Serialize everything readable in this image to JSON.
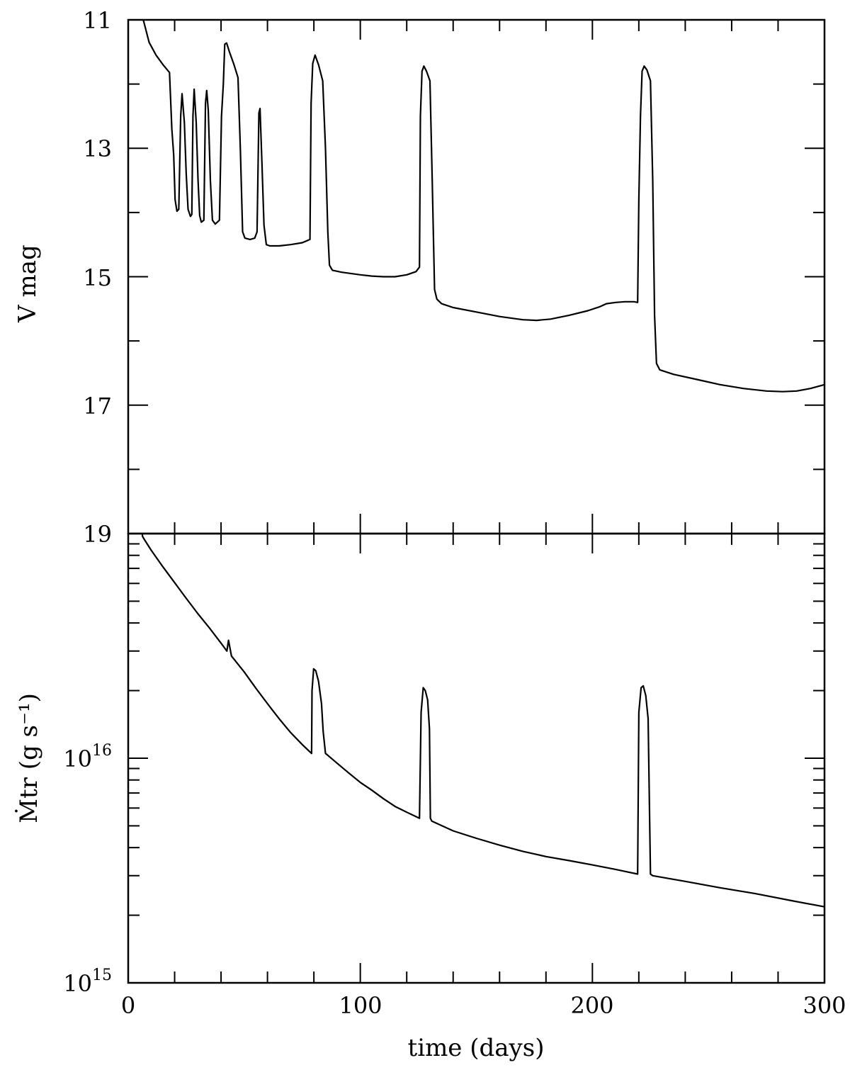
{
  "chart_data": [
    {
      "type": "line",
      "panel": "top",
      "ylabel": "V mag",
      "y_inverted": true,
      "ylim": [
        11,
        19
      ],
      "xlim": [
        0,
        300
      ],
      "y_ticks": [
        "11",
        "13",
        "15",
        "17",
        "19"
      ],
      "series": [
        {
          "points": [
            [
              6.5,
              11.0
            ],
            [
              9,
              11.35
            ],
            [
              12,
              11.55
            ],
            [
              15,
              11.7
            ],
            [
              17.8,
              11.82
            ],
            [
              18.8,
              12.7
            ],
            [
              19.6,
              13.1
            ],
            [
              20.2,
              13.8
            ],
            [
              21,
              13.98
            ],
            [
              21.8,
              13.95
            ],
            [
              22.6,
              12.5
            ],
            [
              23.2,
              12.15
            ],
            [
              24.2,
              12.6
            ],
            [
              25,
              13.4
            ],
            [
              25.8,
              13.95
            ],
            [
              26.8,
              14.06
            ],
            [
              27.4,
              14.03
            ],
            [
              27.9,
              12.5
            ],
            [
              28.4,
              12.08
            ],
            [
              29.3,
              12.6
            ],
            [
              30.1,
              13.5
            ],
            [
              30.8,
              14.05
            ],
            [
              31.5,
              14.15
            ],
            [
              32.6,
              14.12
            ],
            [
              33.3,
              12.3
            ],
            [
              33.8,
              12.1
            ],
            [
              34.5,
              12.4
            ],
            [
              35.4,
              13.5
            ],
            [
              36.3,
              14.12
            ],
            [
              37.5,
              14.18
            ],
            [
              39.3,
              14.12
            ],
            [
              40.2,
              12.5
            ],
            [
              41,
              12.0
            ],
            [
              41.6,
              11.38
            ],
            [
              42.4,
              11.36
            ],
            [
              43.6,
              11.5
            ],
            [
              45.6,
              11.7
            ],
            [
              47.3,
              11.9
            ],
            [
              48.3,
              13.0
            ],
            [
              49.3,
              14.3
            ],
            [
              50.3,
              14.4
            ],
            [
              52.5,
              14.42
            ],
            [
              54.5,
              14.4
            ],
            [
              55.5,
              14.3
            ],
            [
              56.3,
              12.45
            ],
            [
              56.8,
              12.38
            ],
            [
              57.6,
              13.2
            ],
            [
              58.5,
              14.2
            ],
            [
              59.5,
              14.5
            ],
            [
              61,
              14.52
            ],
            [
              65,
              14.52
            ],
            [
              70,
              14.5
            ],
            [
              75,
              14.47
            ],
            [
              78.3,
              14.42
            ],
            [
              78.8,
              12.3
            ],
            [
              79.5,
              11.68
            ],
            [
              80.5,
              11.55
            ],
            [
              82,
              11.7
            ],
            [
              83.8,
              11.95
            ],
            [
              85,
              13.0
            ],
            [
              86,
              14.3
            ],
            [
              86.7,
              14.82
            ],
            [
              88,
              14.9
            ],
            [
              92,
              14.93
            ],
            [
              100,
              14.97
            ],
            [
              105,
              14.99
            ],
            [
              110,
              15.0
            ],
            [
              115,
              15.0
            ],
            [
              120,
              14.97
            ],
            [
              124,
              14.92
            ],
            [
              125.5,
              14.85
            ],
            [
              125.9,
              12.5
            ],
            [
              126.6,
              11.8
            ],
            [
              127.4,
              11.72
            ],
            [
              128.5,
              11.8
            ],
            [
              130,
              11.95
            ],
            [
              131,
              13.5
            ],
            [
              132,
              15.2
            ],
            [
              133,
              15.35
            ],
            [
              135,
              15.42
            ],
            [
              140,
              15.48
            ],
            [
              150,
              15.55
            ],
            [
              160,
              15.62
            ],
            [
              170,
              15.67
            ],
            [
              176,
              15.68
            ],
            [
              182,
              15.66
            ],
            [
              190,
              15.6
            ],
            [
              198,
              15.53
            ],
            [
              203,
              15.47
            ],
            [
              206,
              15.42
            ],
            [
              210,
              15.4
            ],
            [
              214,
              15.39
            ],
            [
              218,
              15.39
            ],
            [
              219.5,
              15.4
            ],
            [
              220,
              13.8
            ],
            [
              220.7,
              12.5
            ],
            [
              221.4,
              11.8
            ],
            [
              222.3,
              11.72
            ],
            [
              223.5,
              11.78
            ],
            [
              225,
              11.95
            ],
            [
              226,
              13.5
            ],
            [
              226.8,
              15.6
            ],
            [
              227.6,
              16.35
            ],
            [
              229,
              16.45
            ],
            [
              235,
              16.52
            ],
            [
              245,
              16.6
            ],
            [
              255,
              16.68
            ],
            [
              265,
              16.74
            ],
            [
              275,
              16.78
            ],
            [
              282,
              16.79
            ],
            [
              288,
              16.78
            ],
            [
              294,
              16.74
            ],
            [
              300,
              16.68
            ]
          ]
        }
      ]
    },
    {
      "type": "line",
      "panel": "bottom",
      "ylabel": "Ṁtr (g s⁻¹)",
      "y_scale": "log",
      "ylim": [
        1000000000000000.0,
        1e+17
      ],
      "xlim": [
        0,
        300
      ],
      "xlabel": "time (days)",
      "x_ticks": [
        "0",
        "100",
        "200",
        "300"
      ],
      "y_ticks": [
        {
          "base": "10",
          "exp": "16"
        },
        {
          "base": "10",
          "exp": "15"
        }
      ],
      "series": [
        {
          "points": [
            [
              6,
              1e+17
            ],
            [
              6.2,
              9.7e+16
            ],
            [
              7,
              9.4e+16
            ],
            [
              10,
              8.4e+16
            ],
            [
              15,
              7.1e+16
            ],
            [
              20,
              6.05e+16
            ],
            [
              25,
              5.15e+16
            ],
            [
              30,
              4.4e+16
            ],
            [
              35,
              3.8e+16
            ],
            [
              40,
              3.25e+16
            ],
            [
              42.5,
              3e+16
            ],
            [
              43.2,
              3.35e+16
            ],
            [
              44.5,
              2.85e+16
            ],
            [
              50,
              2.42e+16
            ],
            [
              55,
              2.05e+16
            ],
            [
              60,
              1.75e+16
            ],
            [
              65,
              1.5e+16
            ],
            [
              70,
              1.3e+16
            ],
            [
              75,
              1.15e+16
            ],
            [
              79,
              1.05e+16
            ],
            [
              79.2,
              2e+16
            ],
            [
              79.9,
              2.5e+16
            ],
            [
              80.8,
              2.45e+16
            ],
            [
              82,
              2.2e+16
            ],
            [
              83.3,
              1.75e+16
            ],
            [
              84,
              1.32e+16
            ],
            [
              85,
              1.05e+16
            ],
            [
              86,
              1.03e+16
            ],
            [
              90,
              9500000000000000.0
            ],
            [
              95,
              8600000000000000.0
            ],
            [
              100,
              7800000000000000.0
            ],
            [
              105,
              7200000000000000.0
            ],
            [
              110,
              6600000000000000.0
            ],
            [
              115,
              6100000000000000.0
            ],
            [
              120,
              5750000000000000.0
            ],
            [
              125.5,
              5400000000000000.0
            ],
            [
              126.2,
              1.6e+16
            ],
            [
              127.1,
              2.06e+16
            ],
            [
              128,
              2e+16
            ],
            [
              129,
              1.82e+16
            ],
            [
              129.8,
              1.35e+16
            ],
            [
              130.2,
              5400000000000000.0
            ],
            [
              130.8,
              5250000000000000.0
            ],
            [
              140,
              4750000000000000.0
            ],
            [
              150,
              4400000000000000.0
            ],
            [
              160,
              4100000000000000.0
            ],
            [
              170,
              3850000000000000.0
            ],
            [
              180,
              3650000000000000.0
            ],
            [
              190,
              3500000000000000.0
            ],
            [
              200,
              3350000000000000.0
            ],
            [
              210,
              3200000000000000.0
            ],
            [
              219.5,
              3050000000000000.0
            ],
            [
              220,
              1.6e+16
            ],
            [
              221,
              2.06e+16
            ],
            [
              221.9,
              2.1e+16
            ],
            [
              223,
              1.9e+16
            ],
            [
              224,
              1.5e+16
            ],
            [
              225,
              3050000000000000.0
            ],
            [
              226,
              3000000000000000.0
            ],
            [
              240,
              2830000000000000.0
            ],
            [
              255,
              2650000000000000.0
            ],
            [
              270,
              2500000000000000.0
            ],
            [
              285,
              2330000000000000.0
            ],
            [
              300,
              2180000000000000.0
            ]
          ]
        }
      ]
    }
  ]
}
